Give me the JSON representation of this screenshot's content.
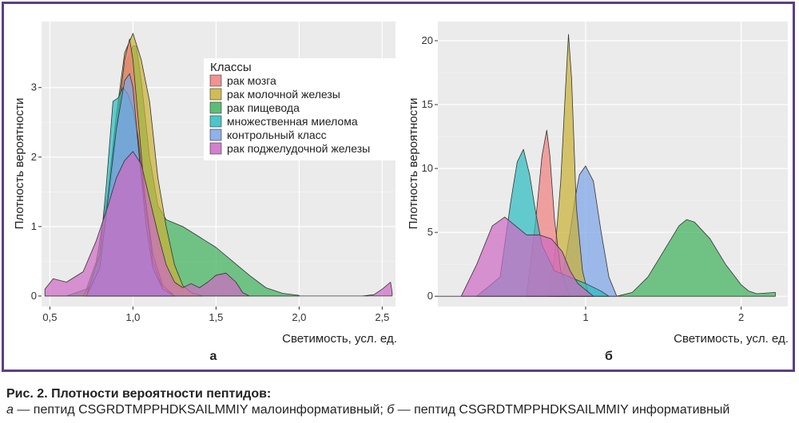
{
  "caption": {
    "title": "Рис. 2. Плотности вероятности пептидов:",
    "a_letter": "а",
    "a_text": " — пептид CSGRDTMPPHDKSAILMMIY малоинформативный; ",
    "b_letter": "б",
    "b_text": " — пептид CSGRDTMPPHDKSAILMMIY информативный"
  },
  "colors": {
    "рак мозга": "#f07f7f",
    "рак молочной железы": "#c9b237",
    "рак пищевода": "#3fb15c",
    "множественная миелома": "#2cbcc0",
    "контрольный класс": "#7da3e6",
    "рак поджелудочной железы": "#cd6bc4"
  },
  "chart_data": [
    {
      "type": "area",
      "panel_label": "а",
      "xlabel": "Светимость, усл. ед.",
      "ylabel": "Плотность вероятности",
      "xlim": [
        0.45,
        2.58
      ],
      "ylim": [
        -0.15,
        3.95
      ],
      "x_ticks": [
        0.5,
        1.0,
        1.5,
        2.0,
        2.5
      ],
      "x_tick_labels": [
        "0,5",
        "1,0",
        "1,5",
        "2,0",
        "2,5"
      ],
      "y_ticks": [
        0,
        1,
        2,
        3
      ],
      "y_tick_labels": [
        "0",
        "1",
        "2",
        "3"
      ],
      "grid": true,
      "legend": {
        "title": "Классы",
        "placement": "top-right",
        "entries": [
          "рак мозга",
          "рак молочной железы",
          "рак пищевода",
          "множественная миелома",
          "контрольный класс",
          "рак поджелудочной железы"
        ]
      },
      "series": [
        {
          "name": "рак пищевода",
          "x": [
            0.47,
            0.6,
            0.72,
            0.78,
            0.85,
            0.9,
            0.95,
            1.0,
            1.02,
            1.05,
            1.1,
            1.15,
            1.2,
            1.3,
            1.4,
            1.5,
            1.6,
            1.7,
            1.8,
            1.9,
            2.0
          ],
          "y": [
            0,
            0,
            0.1,
            0.5,
            1.5,
            2.6,
            3.3,
            3.6,
            3.6,
            3.1,
            2.0,
            1.3,
            1.1,
            1.0,
            0.85,
            0.7,
            0.5,
            0.3,
            0.12,
            0.04,
            0.01
          ]
        },
        {
          "name": "рак молочной железы",
          "x": [
            0.7,
            0.78,
            0.85,
            0.9,
            0.95,
            1.0,
            1.05,
            1.1,
            1.15,
            1.2,
            1.25,
            1.3,
            1.35,
            1.42
          ],
          "y": [
            0,
            0.3,
            1.3,
            2.6,
            3.5,
            3.78,
            3.4,
            2.8,
            1.7,
            1.0,
            0.45,
            0.15,
            0.05,
            0
          ]
        },
        {
          "name": "рак мозга",
          "x": [
            0.72,
            0.8,
            0.86,
            0.9,
            0.95,
            0.98,
            1.0,
            1.03,
            1.07,
            1.12,
            1.18,
            1.25
          ],
          "y": [
            0,
            0.3,
            1.3,
            2.4,
            3.4,
            3.7,
            3.4,
            2.6,
            1.5,
            0.6,
            0.15,
            0
          ]
        },
        {
          "name": "множественная миелома",
          "x": [
            0.72,
            0.8,
            0.84,
            0.88,
            0.91,
            0.94,
            0.97,
            1.0,
            1.03,
            1.07,
            1.12,
            1.18,
            1.25
          ],
          "y": [
            0,
            0.6,
            1.6,
            2.8,
            2.85,
            3.0,
            2.9,
            2.7,
            2.3,
            1.4,
            0.5,
            0.1,
            0
          ]
        },
        {
          "name": "контрольный класс",
          "x": [
            0.72,
            0.8,
            0.85,
            0.9,
            0.95,
            0.98,
            1.0,
            1.03,
            1.08,
            1.12,
            1.18,
            1.25
          ],
          "y": [
            0,
            0.4,
            1.4,
            2.4,
            3.1,
            3.2,
            3.0,
            2.2,
            1.0,
            0.4,
            0.1,
            0
          ]
        },
        {
          "name": "рак поджелудочной железы",
          "x": [
            0.47,
            0.52,
            0.6,
            0.7,
            0.78,
            0.85,
            0.9,
            0.95,
            1.0,
            1.05,
            1.1,
            1.15,
            1.2,
            1.25,
            1.3,
            1.35,
            1.4,
            1.45,
            1.5,
            1.56,
            1.62,
            1.66,
            1.7,
            2.38,
            2.45,
            2.5,
            2.55,
            2.56
          ],
          "y": [
            0.1,
            0.25,
            0.2,
            0.35,
            0.8,
            1.3,
            1.7,
            1.95,
            2.08,
            1.9,
            1.4,
            0.9,
            0.45,
            0.2,
            0.12,
            0.18,
            0.12,
            0.2,
            0.3,
            0.33,
            0.2,
            0.05,
            0,
            0,
            0.02,
            0.1,
            0.2,
            0.05
          ]
        }
      ]
    },
    {
      "type": "area",
      "panel_label": "б",
      "xlabel": "Светимость, усл. ед.",
      "ylabel": "Плотность вероятности",
      "xlim": [
        0.05,
        2.3
      ],
      "ylim": [
        -0.8,
        21.5
      ],
      "x_ticks": [
        1,
        2
      ],
      "x_tick_labels": [
        "1",
        "2"
      ],
      "y_ticks": [
        0,
        5,
        10,
        15,
        20
      ],
      "y_tick_labels": [
        "0",
        "5",
        "10",
        "15",
        "20"
      ],
      "grid": true,
      "legend": null,
      "series": [
        {
          "name": "рак пищевода",
          "x": [
            0.05,
            0.1,
            1.2,
            1.3,
            1.4,
            1.5,
            1.6,
            1.65,
            1.7,
            1.8,
            1.9,
            2.0,
            2.05,
            2.1,
            2.22
          ],
          "y": [
            0,
            0,
            0,
            0.3,
            1.5,
            3.5,
            5.5,
            6.0,
            5.8,
            4.5,
            2.5,
            0.9,
            0.4,
            0.2,
            0.3
          ]
        },
        {
          "name": "контрольный класс",
          "x": [
            0.8,
            0.85,
            0.9,
            0.93,
            0.96,
            1.0,
            1.05,
            1.1,
            1.15,
            1.2
          ],
          "y": [
            0,
            1.5,
            5.0,
            7.5,
            9.5,
            10.2,
            9.0,
            5.0,
            1.5,
            0
          ]
        },
        {
          "name": "рак молочной железы",
          "x": [
            0.76,
            0.8,
            0.84,
            0.87,
            0.89,
            0.91,
            0.94,
            0.98,
            1.02
          ],
          "y": [
            0,
            3,
            9,
            16,
            20.5,
            17,
            7,
            2,
            0
          ]
        },
        {
          "name": "рак мозга",
          "x": [
            0.62,
            0.68,
            0.72,
            0.75,
            0.77,
            0.8,
            0.84,
            0.9
          ],
          "y": [
            0,
            6,
            11,
            13,
            11,
            6,
            2,
            0
          ]
        },
        {
          "name": "множественная миелома",
          "x": [
            0.3,
            0.45,
            0.52,
            0.56,
            0.6,
            0.64,
            0.68,
            0.72,
            0.8,
            1.0,
            1.1,
            1.15
          ],
          "y": [
            0,
            1.5,
            7.5,
            10.5,
            11.5,
            9.5,
            6.5,
            4.0,
            2.0,
            1.0,
            0.4,
            0
          ]
        },
        {
          "name": "рак поджелудочной железы",
          "x": [
            0.2,
            0.3,
            0.4,
            0.48,
            0.55,
            0.62,
            0.7,
            0.78,
            0.85,
            0.9,
            0.95,
            1.0,
            1.05
          ],
          "y": [
            0,
            2.5,
            5.5,
            6.2,
            5.5,
            4.8,
            4.8,
            4.5,
            3.5,
            2.0,
            1.0,
            0.5,
            0
          ]
        }
      ]
    }
  ]
}
